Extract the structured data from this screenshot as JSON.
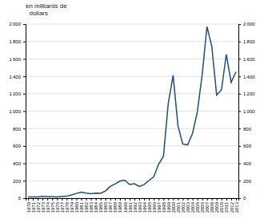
{
  "chart_data": {
    "type": "line",
    "title": "en milliards de\n  dollars",
    "x": [
      1970,
      1971,
      1972,
      1973,
      1974,
      1975,
      1976,
      1977,
      1978,
      1979,
      1980,
      1981,
      1982,
      1983,
      1984,
      1985,
      1986,
      1987,
      1988,
      1989,
      1990,
      1991,
      1992,
      1993,
      1994,
      1995,
      1996,
      1997,
      1998,
      1999,
      2000,
      2001,
      2002,
      2003,
      2004,
      2005,
      2006,
      2007,
      2008,
      2009,
      2010,
      2011,
      2012,
      2013
    ],
    "values": [
      13,
      14,
      14,
      21,
      16,
      15,
      14,
      18,
      22,
      37,
      54,
      69,
      58,
      50,
      57,
      55,
      82,
      135,
      163,
      196,
      207,
      156,
      165,
      135,
      155,
      203,
      246,
      391,
      480,
      1088,
      1411,
      833,
      621,
      612,
      742,
      987,
      1411,
      1971,
      1744,
      1185,
      1244,
      1652,
      1330,
      1452
    ],
    "color": "#1f4e79",
    "xlim": [
      1969.5,
      2013.5
    ],
    "xticks": [
      1970,
      1971,
      1972,
      1973,
      1974,
      1975,
      1976,
      1977,
      1978,
      1979,
      1980,
      1981,
      1982,
      1983,
      1984,
      1985,
      1986,
      1987,
      1988,
      1989,
      1990,
      1991,
      1992,
      1993,
      1994,
      1995,
      1996,
      1997,
      1998,
      1999,
      2000,
      2001,
      2002,
      2003,
      2004,
      2005,
      2006,
      2007,
      2008,
      2009,
      2010,
      2011,
      2012,
      2013
    ],
    "ylim": [
      0,
      2000
    ],
    "yticks": [
      0,
      200,
      400,
      600,
      800,
      {
        "value": 1000,
        "label": "1 000"
      },
      {
        "value": 1200,
        "label": "1 200"
      },
      {
        "value": 1400,
        "label": "1 400"
      },
      {
        "value": 1600,
        "label": "1 600"
      },
      {
        "value": 1800,
        "label": "1 800"
      },
      {
        "value": 2000,
        "label": "2 000"
      }
    ],
    "y2lim": [
      0,
      2000
    ],
    "y2ticks": [
      0,
      200,
      400,
      600,
      800,
      {
        "value": 1000,
        "label": "1 000"
      },
      {
        "value": 1200,
        "label": "1 200"
      },
      {
        "value": 1400,
        "label": "1 400"
      },
      {
        "value": 1600,
        "label": "1 600"
      },
      {
        "value": 1800,
        "label": "1 800"
      },
      {
        "value": 2000,
        "label": "2 000"
      }
    ],
    "grid": true
  }
}
